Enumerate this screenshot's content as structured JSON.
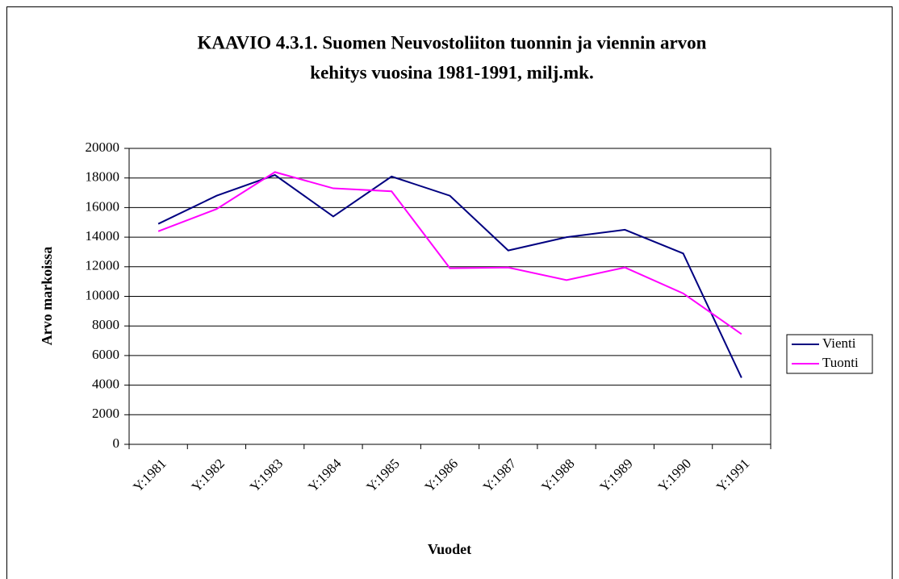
{
  "chart_data": {
    "type": "line",
    "title": [
      "KAAVIO 4.3.1. Suomen Neuvostoliiton tuonnin ja viennin arvon",
      "kehitys vuosina 1981-1991, milj.mk."
    ],
    "x_label": "Vuodet",
    "y_label": "Arvo markoissa",
    "categories": [
      "Y:1981",
      "Y:1982",
      "Y:1983",
      "Y:1984",
      "Y:1985",
      "Y:1986",
      "Y:1987",
      "Y:1988",
      "Y:1989",
      "Y:1990",
      "Y:1991"
    ],
    "series": [
      {
        "name": "Vienti",
        "color": "#000080",
        "values": [
          14900,
          16800,
          18200,
          15400,
          18100,
          16800,
          13100,
          14000,
          14500,
          12900,
          4500
        ]
      },
      {
        "name": "Tuonti",
        "color": "#ff00ff",
        "values": [
          14400,
          15900,
          18400,
          17300,
          17100,
          11900,
          11950,
          11100,
          11950,
          10200,
          7450
        ]
      }
    ],
    "ylim": [
      0,
      20000
    ],
    "yticks": [
      0,
      2000,
      4000,
      6000,
      8000,
      10000,
      12000,
      14000,
      16000,
      18000,
      20000
    ],
    "grid": true,
    "legend": "right"
  }
}
